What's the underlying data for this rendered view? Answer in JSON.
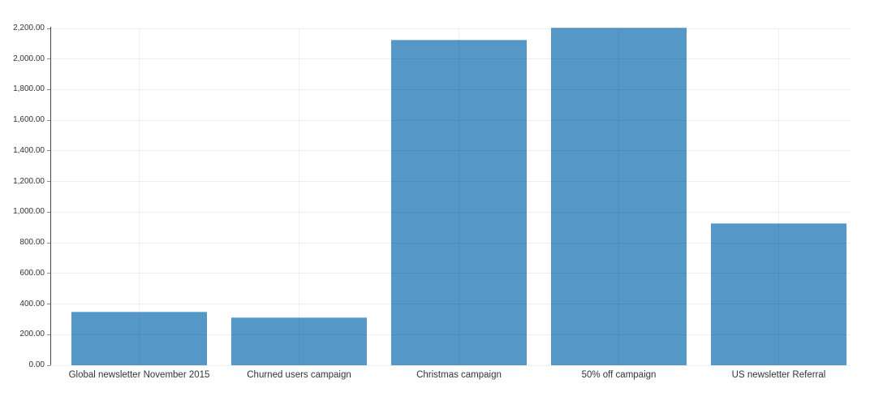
{
  "page": {
    "background": "#ffffff",
    "title": ""
  },
  "chart_data": {
    "type": "bar",
    "title": "",
    "xlabel": "",
    "ylabel": "",
    "categories": [
      "Global newsletter November 2015",
      "Churned users campaign",
      "Christmas campaign",
      "50% off campaign",
      "US newsletter Referral"
    ],
    "values": [
      350,
      315,
      2125,
      2205,
      930
    ],
    "ylim": [
      0,
      2200
    ],
    "y_tick_interval": 200,
    "y_ticks": [
      {
        "value": 0,
        "label": "0.00"
      },
      {
        "value": 200,
        "label": "200.00"
      },
      {
        "value": 400,
        "label": "400.00"
      },
      {
        "value": 600,
        "label": "600.00"
      },
      {
        "value": 800,
        "label": "800.00"
      },
      {
        "value": 1000,
        "label": "1,000.00"
      },
      {
        "value": 1200,
        "label": "1,200.00"
      },
      {
        "value": 1400,
        "label": "1,400.00"
      },
      {
        "value": 1600,
        "label": "1,600.00"
      },
      {
        "value": 1800,
        "label": "1,800.00"
      },
      {
        "value": 2000,
        "label": "2,000.00"
      },
      {
        "value": 2200,
        "label": "2,200.00"
      }
    ],
    "grid": {
      "horizontal": true,
      "vertical_at_category_centers": true
    },
    "legend_position": "none",
    "colors": {
      "bar": "#5598c8",
      "gridline": "rgba(0,0,0,0.065)",
      "axis_line": "#4a4a4a",
      "tick_label": "#333333",
      "category_label": "#333333"
    }
  }
}
